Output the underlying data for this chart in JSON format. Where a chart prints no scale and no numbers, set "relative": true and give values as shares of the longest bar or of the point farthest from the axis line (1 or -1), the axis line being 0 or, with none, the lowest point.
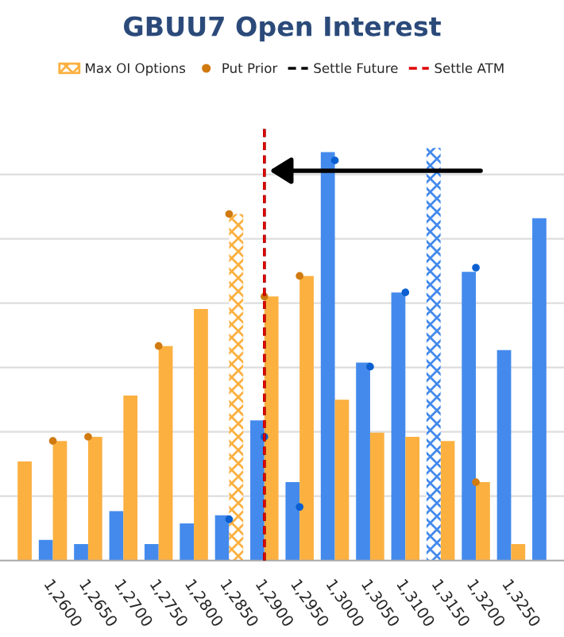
{
  "chart_data": {
    "type": "bar",
    "title": "GBUU7 Open Interest",
    "relative": true,
    "grid": "y",
    "legend": "top",
    "categories": [
      null,
      "1,2600",
      "1,2650",
      "1,2700",
      "1,2750",
      "1,2800",
      "1,2850",
      "1,2900",
      "1,2950",
      "1,3000",
      "1,3050",
      "1,3100",
      "1,3150",
      "1,3200",
      "1,3250",
      null
    ],
    "series": [
      {
        "color": "#448aec",
        "values": [
          null,
          0.05,
          0.04,
          0.12,
          0.04,
          0.09,
          0.11,
          0.34,
          0.19,
          0.99,
          0.48,
          0.65,
          null,
          0.7,
          0.51,
          0.83
        ]
      },
      {
        "color": "#fbb040",
        "values": [
          0.24,
          0.29,
          0.3,
          0.4,
          0.52,
          0.61,
          null,
          0.64,
          0.69,
          0.39,
          0.31,
          0.3,
          0.29,
          0.19,
          0.04,
          null
        ]
      },
      {
        "name": "Max OI Options",
        "colors": [
          null,
          null,
          null,
          null,
          null,
          null,
          "#fbb040",
          null,
          null,
          null,
          null,
          null,
          "#448aec",
          null,
          null,
          null
        ],
        "values": [
          null,
          null,
          null,
          null,
          null,
          null,
          0.84,
          null,
          null,
          null,
          null,
          null,
          1.0,
          null,
          null,
          null
        ]
      },
      {
        "type": "scatter",
        "color": "#0b5fd0",
        "values": [
          null,
          null,
          null,
          null,
          null,
          null,
          0.1,
          0.3,
          0.13,
          0.97,
          0.47,
          0.65,
          null,
          0.71,
          null,
          null
        ]
      },
      {
        "type": "scatter",
        "name": "Put Prior",
        "color": "#d07a10",
        "values": [
          null,
          0.29,
          0.3,
          null,
          0.52,
          null,
          0.84,
          0.64,
          0.69,
          null,
          null,
          null,
          null,
          0.19,
          null,
          null
        ]
      }
    ],
    "ref_lines": [
      {
        "axis": "x",
        "value": "1,2900",
        "label": "Settle Future",
        "color": "#000000",
        "line_style": "dashed"
      },
      {
        "axis": "x",
        "value": "1,2900",
        "label": "Settle ATM",
        "color": "#e00000",
        "line_style": "dashed"
      }
    ]
  }
}
